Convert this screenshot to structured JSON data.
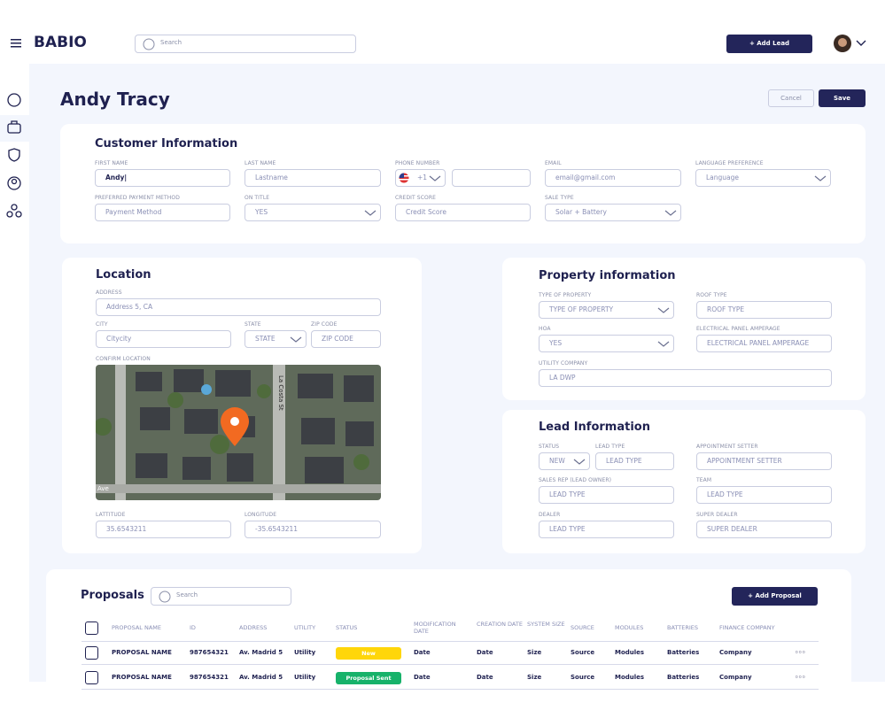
{
  "header": {
    "logo": "BABIO",
    "search": "Search",
    "add_lead": "+ Add Lead"
  },
  "title": "Andy Tracy",
  "cancel": "Cancel",
  "save": "Save",
  "customer": {
    "title": "Customer Information",
    "fields": [
      {
        "label": "FIRST NAME",
        "value": "Andy|"
      },
      {
        "label": "LAST NAME",
        "value": "Lastname"
      },
      {
        "label": "PHONE NUMBER",
        "value": "+1"
      },
      {
        "label": "EMAIL",
        "value": "email@gmail.com"
      },
      {
        "label": "LANGUAGE PREFERENCE",
        "value": "Language"
      },
      {
        "label": "PREFERRED PAYMENT METHOD",
        "value": "Payment Method"
      },
      {
        "label": "ON TITLE",
        "value": "YES"
      },
      {
        "label": "CREDIT SCORE",
        "value": "Credit Score"
      },
      {
        "label": "SALE TYPE",
        "value": "Solar + Battery"
      }
    ]
  },
  "location": {
    "title": "Location",
    "map_label": "CONFIRM LOCATION",
    "streets": [
      "La Costa St",
      "Ave"
    ],
    "fields": [
      {
        "label": "ADDRESS",
        "value": "Address 5, CA"
      },
      {
        "label": "CITY",
        "value": "Citycity"
      },
      {
        "label": "STATE",
        "value": "STATE"
      },
      {
        "label": "ZIP CODE",
        "value": "ZIP CODE"
      },
      {
        "label": "LATTITUDE",
        "value": "35.6543211"
      },
      {
        "label": "LONGITUDE",
        "value": "-35.6543211"
      }
    ]
  },
  "property": {
    "title": "Property information",
    "fields": [
      {
        "label": "TYPE OF PROPERTY",
        "value": "TYPE OF PROPERTY"
      },
      {
        "label": "ROOF TYPE",
        "value": "ROOF TYPE"
      },
      {
        "label": "HOA",
        "value": "YES"
      },
      {
        "label": "ELECTRICAL PANEL AMPERAGE",
        "value": "ELECTRICAL PANEL AMPERAGE"
      },
      {
        "label": "UTILITY COMPANY",
        "value": "LA DWP"
      }
    ]
  },
  "lead": {
    "title": "Lead Information",
    "fields": [
      {
        "label": "STATUS",
        "value": "NEW"
      },
      {
        "label": "LEAD TYPE",
        "value": "LEAD TYPE"
      },
      {
        "label": "APPOINTMENT SETTER",
        "value": "APPOINTMENT SETTER"
      },
      {
        "label": "SALES REP (LEAD OWNER)",
        "value": "LEAD TYPE"
      },
      {
        "label": "TEAM",
        "value": "LEAD TYPE"
      },
      {
        "label": "DEALER",
        "value": "LEAD TYPE"
      },
      {
        "label": "SUPER DEALER",
        "value": "SUPER DEALER"
      }
    ]
  },
  "proposals": {
    "title": "Proposals",
    "search": "Search",
    "add": "+ Add Proposal",
    "columns": [
      "PROPOSAL NAME",
      "ID",
      "ADDRESS",
      "UTILITY",
      "STATUS",
      "MODIFICATION DATE",
      "CREATION DATE",
      "SYSTEM SIZE",
      "SOURCE",
      "MODULES",
      "BATTERIES",
      "FINANCE COMPANY"
    ],
    "rows": [
      [
        "PROPOSAL NAME",
        "987654321",
        "Av. Madrid 5",
        "Utility",
        "New",
        "Date",
        "Date",
        "Size",
        "Source",
        "Modules",
        "Batteries",
        "Company"
      ],
      [
        "PROPOSAL NAME",
        "987654321",
        "Av. Madrid 5",
        "Utility",
        "Proposal Sent",
        "Date",
        "Date",
        "Size",
        "Source",
        "Modules",
        "Batteries",
        "Company"
      ]
    ]
  }
}
